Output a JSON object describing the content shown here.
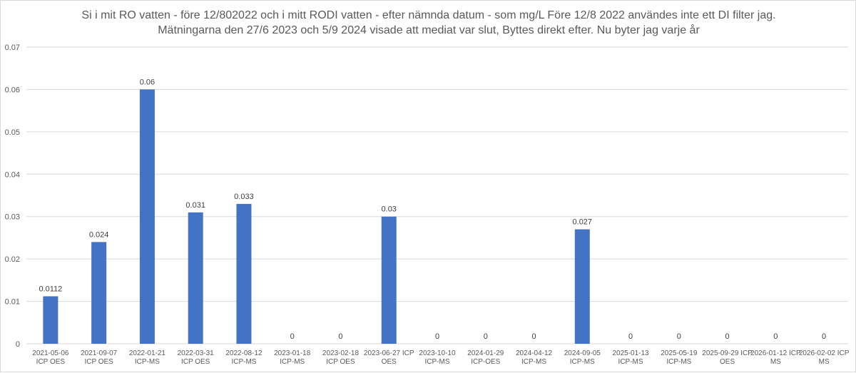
{
  "chart_data": {
    "type": "bar",
    "title_lines": [
      "Si i mit RO vatten - före 12/802022 och i mitt RODI vatten - efter nämnda datum -  som mg/L Före 12/8 2022 användes inte ett DI filter  jag.",
      "Mätningarna den 27/6 2023 och 5/9 2024 visade att mediat var slut, Byttes direkt efter. Nu byter jag varje år"
    ],
    "categories": [
      [
        "2021-05-06",
        "ICP OES"
      ],
      [
        "2021-09-07",
        "ICP OES"
      ],
      [
        "2022-01-21",
        "ICP-MS"
      ],
      [
        "2022-03-31",
        "ICP OES"
      ],
      [
        "2022-08-12",
        "ICP-MS"
      ],
      [
        "2023-01-18",
        "ICP-MS"
      ],
      [
        "2023-02-18",
        "ICP OES"
      ],
      [
        "2023-06-27 ICP",
        "OES"
      ],
      [
        "2023-10-10",
        "ICP-MS"
      ],
      [
        "2024-01-29",
        "ICP-OES"
      ],
      [
        "2024-04-12",
        "ICP-MS"
      ],
      [
        "2024-09-05",
        "ICP-MS"
      ],
      [
        "2025-01-13",
        "ICP-MS"
      ],
      [
        "2025-05-19",
        "ICP-MS"
      ],
      [
        "2025-09-29 ICP",
        "OES"
      ],
      [
        "2026-01-12 ICP",
        "MS"
      ],
      [
        "2026-02-02 ICP",
        "MS"
      ]
    ],
    "values": [
      0.0112,
      0.024,
      0.06,
      0.031,
      0.033,
      0,
      0,
      0.03,
      0,
      0,
      0,
      0.027,
      0,
      0,
      0,
      0,
      0
    ],
    "data_labels": [
      "0.0112",
      "0.024",
      "0.06",
      "0.031",
      "0.033",
      "0",
      "0",
      "0.03",
      "0",
      "0",
      "0",
      "0.027",
      "0",
      "0",
      "0",
      "0",
      "0"
    ],
    "y_ticks": [
      "0",
      "0.01",
      "0.02",
      "0.03",
      "0.04",
      "0.05",
      "0.06",
      "0.07"
    ],
    "ylim": [
      0,
      0.07
    ],
    "grid": true,
    "legend": "none",
    "bar_color": "#4472c4",
    "grid_color": "#d9d9d9"
  }
}
